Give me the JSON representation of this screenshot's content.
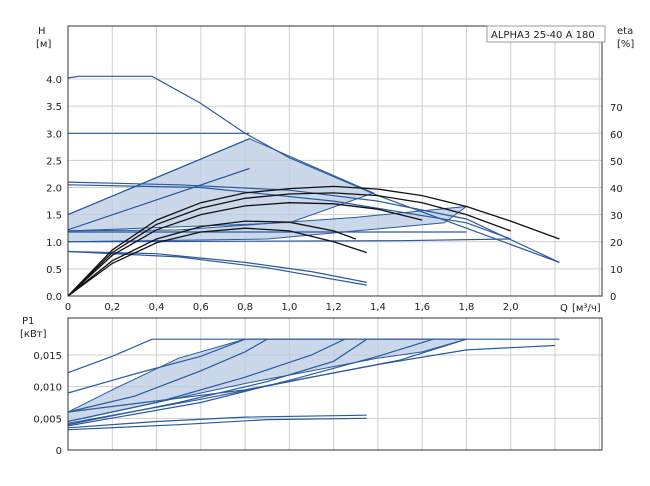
{
  "chart_data": [
    {
      "type": "line",
      "panel": "head",
      "title": "ALPHA3 25-40 A 180",
      "ylabel": "H",
      "yunit": "[м]",
      "y2label": "eta",
      "y2unit": "[%]",
      "xlabel": "Q",
      "xunit": "[м³/ч]",
      "xlim": [
        0,
        2.4
      ],
      "ylim": [
        0,
        4.5
      ],
      "y2lim": [
        0,
        90
      ],
      "x_ticks": [
        "0",
        "0,2",
        "0,4",
        "0,6",
        "0,8",
        "1,0",
        "1,2",
        "1,4",
        "1,6",
        "1,8",
        "2,0"
      ],
      "x_tick_values": [
        0,
        0.2,
        0.4,
        0.6,
        0.8,
        1.0,
        1.2,
        1.4,
        1.6,
        1.8,
        2.0
      ],
      "y_ticks": [
        "0.0",
        "0.5",
        "1.0",
        "1.5",
        "2.0",
        "2.5",
        "3.0",
        "3.5",
        "4.0"
      ],
      "y_tick_values": [
        0,
        0.5,
        1.0,
        1.5,
        2.0,
        2.5,
        3.0,
        3.5,
        4.0
      ],
      "y2_ticks": [
        "0",
        "10",
        "20",
        "30",
        "40",
        "50",
        "60",
        "70"
      ],
      "y2_tick_values": [
        0,
        10,
        20,
        30,
        40,
        50,
        60,
        70
      ],
      "grid": true,
      "shaded_areas": [
        {
          "name": "proportional-pressure",
          "points": [
            [
              0,
              1.5
            ],
            [
              0.82,
              2.9
            ],
            [
              1.38,
              1.9
            ],
            [
              1.0,
              1.35
            ],
            [
              0,
              1.2
            ]
          ]
        },
        {
          "name": "constant-pressure",
          "points": [
            [
              0,
              1.2
            ],
            [
              0.5,
              1.22
            ],
            [
              1.3,
              1.45
            ],
            [
              1.8,
              1.65
            ],
            [
              1.7,
              1.35
            ],
            [
              0.9,
              1.05
            ],
            [
              0,
              1.0
            ]
          ]
        }
      ],
      "series": [
        {
          "style": "blue",
          "values": [
            [
              0,
              4.02
            ],
            [
              0.05,
              4.05
            ],
            [
              0.38,
              4.05
            ],
            [
              0.6,
              3.55
            ],
            [
              0.8,
              3.0
            ],
            [
              1.0,
              2.55
            ],
            [
              1.2,
              2.2
            ],
            [
              1.4,
              1.85
            ],
            [
              1.6,
              1.55
            ],
            [
              1.8,
              1.25
            ],
            [
              2.0,
              0.95
            ],
            [
              2.22,
              0.62
            ]
          ]
        },
        {
          "style": "blue",
          "values": [
            [
              0,
              3.0
            ],
            [
              0.82,
              3.0
            ]
          ]
        },
        {
          "style": "blue",
          "values": [
            [
              0,
              2.1
            ],
            [
              0.5,
              2.05
            ],
            [
              1.0,
              1.95
            ],
            [
              1.4,
              1.75
            ],
            [
              1.8,
              1.42
            ],
            [
              2.22,
              0.62
            ]
          ]
        },
        {
          "style": "blue",
          "values": [
            [
              0,
              2.05
            ],
            [
              0.6,
              2.0
            ],
            [
              1.2,
              1.75
            ],
            [
              1.8,
              1.35
            ],
            [
              2.0,
              1.05
            ]
          ]
        },
        {
          "style": "blue",
          "values": [
            [
              0,
              1.5
            ],
            [
              0.82,
              2.9
            ]
          ]
        },
        {
          "style": "blue",
          "values": [
            [
              0,
              1.22
            ],
            [
              0.82,
              2.35
            ]
          ]
        },
        {
          "style": "blue",
          "values": [
            [
              0,
              1.18
            ],
            [
              1.8,
              1.18
            ]
          ]
        },
        {
          "style": "blue",
          "values": [
            [
              0,
              1.0
            ],
            [
              1.5,
              1.02
            ],
            [
              2.0,
              1.05
            ]
          ]
        },
        {
          "style": "blue",
          "values": [
            [
              0,
              0.82
            ],
            [
              0.4,
              0.78
            ],
            [
              0.8,
              0.62
            ],
            [
              1.1,
              0.45
            ],
            [
              1.35,
              0.25
            ]
          ]
        },
        {
          "style": "blue",
          "values": [
            [
              0,
              0.82
            ],
            [
              0.5,
              0.72
            ],
            [
              0.9,
              0.52
            ],
            [
              1.35,
              0.2
            ]
          ]
        },
        {
          "style": "black",
          "values": [
            [
              0,
              0
            ],
            [
              0.2,
              0.85
            ],
            [
              0.4,
              1.4
            ],
            [
              0.6,
              1.72
            ],
            [
              0.8,
              1.9
            ],
            [
              1.0,
              1.98
            ],
            [
              1.2,
              2.02
            ],
            [
              1.4,
              1.97
            ],
            [
              1.6,
              1.85
            ],
            [
              1.8,
              1.65
            ],
            [
              2.0,
              1.38
            ],
            [
              2.22,
              1.05
            ]
          ]
        },
        {
          "style": "black",
          "values": [
            [
              0,
              0
            ],
            [
              0.2,
              0.8
            ],
            [
              0.4,
              1.32
            ],
            [
              0.6,
              1.62
            ],
            [
              0.8,
              1.8
            ],
            [
              1.0,
              1.88
            ],
            [
              1.2,
              1.9
            ],
            [
              1.4,
              1.85
            ],
            [
              1.6,
              1.72
            ],
            [
              1.8,
              1.5
            ],
            [
              2.0,
              1.2
            ]
          ]
        },
        {
          "style": "black",
          "values": [
            [
              0,
              0
            ],
            [
              0.2,
              0.75
            ],
            [
              0.4,
              1.22
            ],
            [
              0.6,
              1.5
            ],
            [
              0.8,
              1.66
            ],
            [
              1.0,
              1.72
            ],
            [
              1.2,
              1.7
            ],
            [
              1.4,
              1.6
            ],
            [
              1.6,
              1.4
            ]
          ]
        },
        {
          "style": "black",
          "values": [
            [
              0,
              0
            ],
            [
              0.2,
              0.65
            ],
            [
              0.4,
              1.05
            ],
            [
              0.6,
              1.28
            ],
            [
              0.8,
              1.38
            ],
            [
              1.0,
              1.36
            ],
            [
              1.2,
              1.2
            ],
            [
              1.3,
              1.05
            ]
          ]
        },
        {
          "style": "black",
          "values": [
            [
              0,
              0
            ],
            [
              0.2,
              0.6
            ],
            [
              0.4,
              0.98
            ],
            [
              0.6,
              1.18
            ],
            [
              0.8,
              1.25
            ],
            [
              1.0,
              1.2
            ],
            [
              1.2,
              1.0
            ],
            [
              1.35,
              0.8
            ]
          ]
        }
      ]
    },
    {
      "type": "line",
      "panel": "power",
      "ylabel": "P1",
      "yunit": "[кВт]",
      "xlim": [
        0,
        2.4
      ],
      "ylim": [
        0,
        0.02
      ],
      "y_ticks": [
        "0",
        "0,005",
        "0,010",
        "0,015"
      ],
      "y_tick_values": [
        0,
        0.005,
        0.01,
        0.015
      ],
      "grid": true,
      "shaded_areas": [
        {
          "name": "power-range",
          "points": [
            [
              0,
              0.0045
            ],
            [
              0.4,
              0.0075
            ],
            [
              0.8,
              0.0105
            ],
            [
              1.1,
              0.0125
            ],
            [
              1.4,
              0.0145
            ],
            [
              1.6,
              0.0155
            ],
            [
              1.8,
              0.0175
            ],
            [
              0.8,
              0.0175
            ],
            [
              0.5,
              0.0145
            ],
            [
              0.2,
              0.0095
            ],
            [
              0,
              0.006
            ]
          ]
        }
      ],
      "series": [
        {
          "style": "blue",
          "values": [
            [
              0,
              0.0122
            ],
            [
              0.2,
              0.0148
            ],
            [
              0.38,
              0.0175
            ],
            [
              2.22,
              0.0175
            ]
          ]
        },
        {
          "style": "blue",
          "values": [
            [
              0,
              0.009
            ],
            [
              0.3,
              0.012
            ],
            [
              0.6,
              0.0148
            ],
            [
              0.8,
              0.0175
            ]
          ]
        },
        {
          "style": "blue",
          "values": [
            [
              0,
              0.006
            ],
            [
              0.3,
              0.0085
            ],
            [
              0.6,
              0.0125
            ],
            [
              0.8,
              0.0155
            ],
            [
              0.9,
              0.0175
            ]
          ]
        },
        {
          "style": "blue",
          "values": [
            [
              0,
              0.0045
            ],
            [
              0.4,
              0.0075
            ],
            [
              0.8,
              0.0115
            ],
            [
              1.1,
              0.015
            ],
            [
              1.25,
              0.0175
            ]
          ]
        },
        {
          "style": "blue",
          "values": [
            [
              0,
              0.004
            ],
            [
              0.5,
              0.0075
            ],
            [
              0.9,
              0.0108
            ],
            [
              1.2,
              0.014
            ],
            [
              1.35,
              0.0175
            ]
          ]
        },
        {
          "style": "blue",
          "values": [
            [
              0,
              0.0038
            ],
            [
              0.6,
              0.0075
            ],
            [
              1.0,
              0.011
            ],
            [
              1.4,
              0.0148
            ],
            [
              1.65,
              0.0175
            ]
          ]
        },
        {
          "style": "blue",
          "values": [
            [
              0,
              0.0042
            ],
            [
              0.6,
              0.008
            ],
            [
              1.1,
              0.0115
            ],
            [
              1.5,
              0.0142
            ],
            [
              1.8,
              0.0175
            ]
          ]
        },
        {
          "style": "blue",
          "values": [
            [
              0,
              0.006
            ],
            [
              0.8,
              0.0095
            ],
            [
              1.4,
              0.0135
            ],
            [
              1.8,
              0.0158
            ],
            [
              2.2,
              0.0165
            ]
          ]
        },
        {
          "style": "blue",
          "values": [
            [
              0,
              0.0035
            ],
            [
              0.4,
              0.0045
            ],
            [
              0.8,
              0.0052
            ],
            [
              1.35,
              0.0055
            ]
          ]
        },
        {
          "style": "blue",
          "values": [
            [
              0,
              0.0032
            ],
            [
              0.5,
              0.004
            ],
            [
              0.9,
              0.0048
            ],
            [
              1.35,
              0.005
            ]
          ]
        }
      ]
    }
  ]
}
